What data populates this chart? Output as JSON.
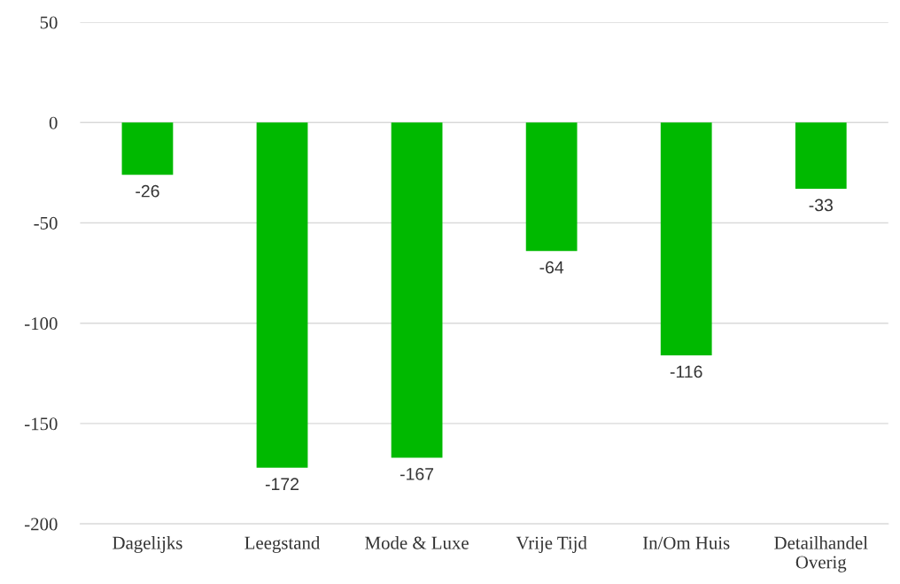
{
  "chart_data": {
    "type": "bar",
    "categories": [
      "Dagelijks",
      "Leegstand",
      "Mode & Luxe",
      "Vrije Tijd",
      "In/Om Huis",
      "Detailhandel Overig"
    ],
    "values": [
      -26,
      -172,
      -167,
      -64,
      -116,
      -33
    ],
    "color": "#00b900",
    "ylim": [
      -200,
      50
    ],
    "yticks": [
      -200,
      -150,
      -100,
      -50,
      0,
      50
    ],
    "grid": "y",
    "data_labels": true,
    "legend": false
  }
}
